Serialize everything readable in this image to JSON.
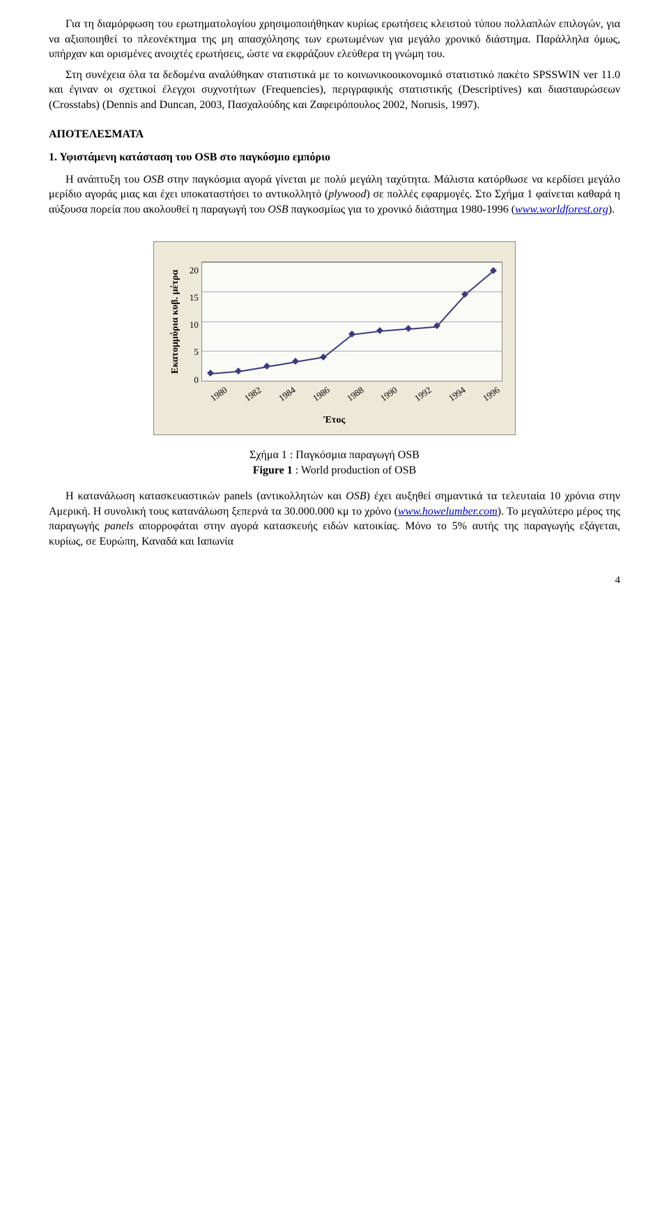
{
  "paragraphs": {
    "p1": "Για τη διαμόρφωση του ερωτηματολογίου χρησιμοποιήθηκαν κυρίως ερωτήσεις κλειστού τύπου πολλαπλών επιλογών, για να αξιοποιηθεί το πλεονέκτημα της μη απασχόλησης των ερωτωμένων για μεγάλο χρονικό διάστημα. Παράλληλα όμως, υπήρχαν και ορισμένες ανοιχτές ερωτήσεις, ώστε να εκφράζουν ελεύθερα τη γνώμη του.",
    "p2": "Στη συνέχεια όλα τα δεδομένα αναλύθηκαν στατιστικά με το κοινωνικοοικονομικό στατιστικό πακέτο SPSSWIN ver 11.0 και έγιναν οι σχετικοί έλεγχοι συχνοτήτων (Frequencies), περιγραφικής στατιστικής (Descriptives) και διασταυρώσεων (Crosstabs) (Dennis and Duncan, 2003, Πασχαλούδης και Ζαφειρόπουλος 2002, Norusis, 1997).",
    "section_title": "ΑΠΟΤΕΛΕΣΜΑΤΑ",
    "subsection_title": "1. Υφιστάμενη κατάσταση του OSB στο παγκόσμιο εμπόριο",
    "p3a": "Η ανάπτυξη του ",
    "p3b_italic": "OSB",
    "p3c": " στην παγκόσμια αγορά γίνεται με πολύ μεγάλη ταχύτητα. Μάλιστα κατόρθωσε να κερδίσει μεγάλο μερίδιο αγοράς μιας και έχει υποκαταστήσει το αντικολλητό (",
    "p3d_italic": "plywood",
    "p3e": ") σε πολλές εφαρμογές. Στο Σχήμα 1 φαίνεται καθαρά η αύξουσα πορεία που ακολουθεί η παραγωγή του ",
    "p3f_italic": "OSB",
    "p3g": " παγκοσμίως για το χρονικό διάστημα 1980-1996 (",
    "link1_text": "www.worldforest.org",
    "p3h": ").",
    "caption_line1": "Σχήμα 1 : Παγκόσμια παραγωγή OSB",
    "caption_line2_bold": "Figure 1",
    "caption_line2_rest": " : World production of OSB",
    "p4a": "Η κατανάλωση κατασκευαστικών panels (αντικολλητών και ",
    "p4b_italic": "OSB",
    "p4c": ") έχει αυξηθεί σημαντικά τα τελευταία 10 χρόνια στην Αμερική. Η συνολική τους κατανάλωση ξεπερνά τα 30.000.000 κμ το χρόνο (",
    "link2_text": "www.howelumber.com",
    "p4d": "). Το μεγαλύτερο μέρος της παραγωγής ",
    "p4e_italic": "panels",
    "p4f": " απορροφάται στην αγορά κατασκευής ειδών κατοικίας. Μόνο το 5% αυτής της παραγωγής εξάγεται, κυρίως, σε Ευρώπη, Καναδά και Ιαπωνία",
    "page_number": "4"
  },
  "chart": {
    "type": "line",
    "ylabel": "Εκατομμύρια κυβ. μέτρα",
    "xlabel": "Έτος",
    "ylim": [
      0,
      20
    ],
    "ytick_step": 5,
    "yticks": [
      "20",
      "15",
      "10",
      "5",
      "0"
    ],
    "xticks": [
      "1980",
      "1982",
      "1984",
      "1986",
      "1988",
      "1990",
      "1992",
      "1994",
      "1996"
    ],
    "values": [
      1.2,
      1.6,
      2.4,
      3.2,
      4.0,
      7.8,
      8.4,
      8.8,
      9.2,
      14.5,
      18.5
    ],
    "x_count": 9,
    "plot_bg": "#fafaf7",
    "panel_bg": "#ece9d8",
    "grid_color": "#aaaaaa",
    "line_color": "#3b3b7a",
    "marker_color": "#3b3b7a"
  }
}
